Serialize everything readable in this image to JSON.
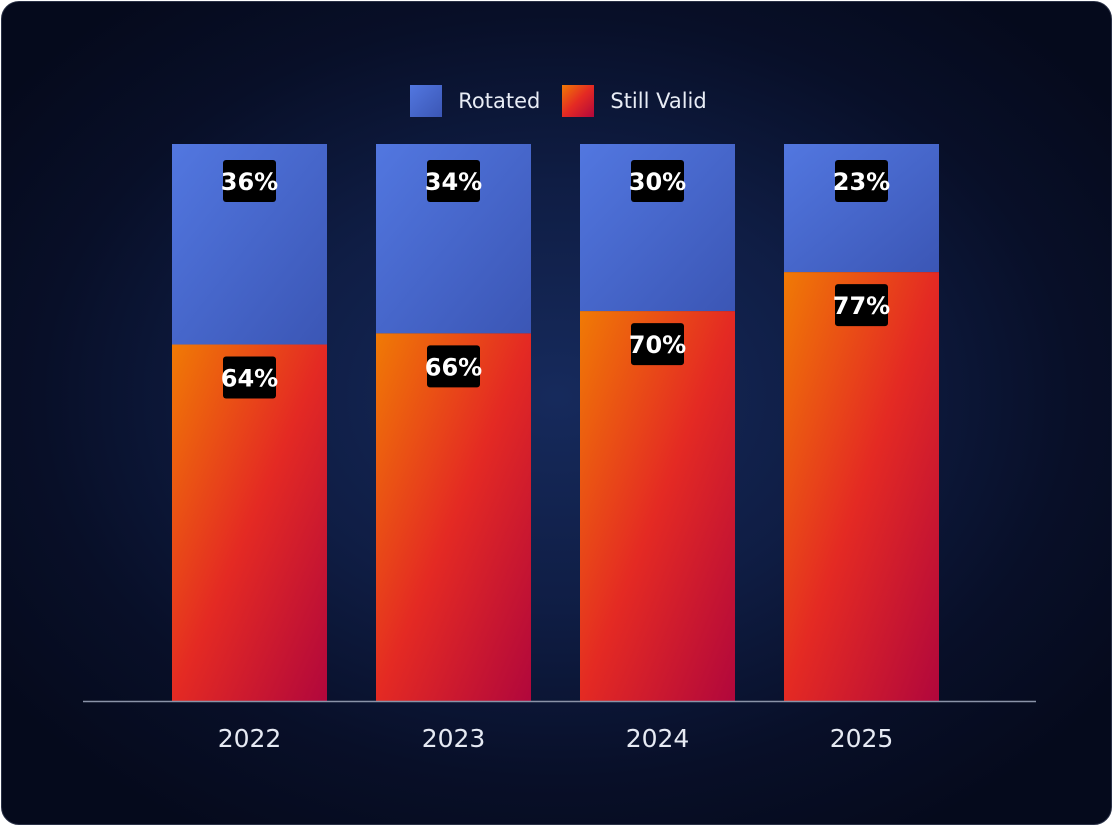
{
  "chart_data": {
    "type": "bar",
    "stacked": true,
    "categories": [
      "2022",
      "2023",
      "2024",
      "2025"
    ],
    "series": [
      {
        "name": "Still Valid",
        "values": [
          64,
          66,
          70,
          77
        ],
        "data_labels": [
          "64%",
          "66%",
          "70%",
          "77%"
        ]
      },
      {
        "name": "Rotated",
        "values": [
          36,
          34,
          30,
          23
        ],
        "data_labels": [
          "36%",
          "34%",
          "30%",
          "23%"
        ]
      }
    ],
    "ylim": [
      0,
      100
    ],
    "legend": [
      "Rotated",
      "Still Valid"
    ],
    "legend_position": "top-center",
    "grid": false,
    "colors": {
      "rotated_light": "#5277e0",
      "rotated_dark": "#3b56b5",
      "valid_orange": "#f07a05",
      "valid_red": "#e42a23",
      "valid_crimson": "#b1073c",
      "axis": "#8a93a8",
      "label_bg": "#000000"
    }
  },
  "legend_items": {
    "rotated": "Rotated",
    "still_valid": "Still Valid"
  }
}
